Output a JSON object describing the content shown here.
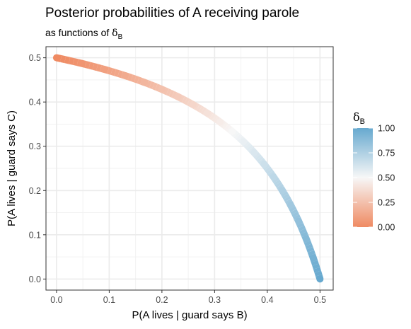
{
  "chart_data": {
    "type": "line",
    "title": "Posterior probabilities of A receiving parole",
    "subtitle_prefix": "as functions of ",
    "subtitle_symbol": "δ",
    "subtitle_subscript": "B",
    "xlabel": "P(A lives | guard says B)",
    "ylabel": "P(A lives | guard says C)",
    "xlim": [
      -0.02,
      0.525
    ],
    "ylim": [
      -0.025,
      0.525
    ],
    "x_ticks": [
      0,
      0.1,
      0.2,
      0.3,
      0.4,
      0.5
    ],
    "x_tick_labels": [
      "0.0",
      "0.1",
      "0.2",
      "0.3",
      "0.4",
      "0.5"
    ],
    "y_ticks": [
      0,
      0.1,
      0.2,
      0.3,
      0.4,
      0.5
    ],
    "y_tick_labels": [
      "0.0",
      "0.1",
      "0.2",
      "0.3",
      "0.4",
      "0.5"
    ],
    "grid": true,
    "legend": {
      "placement": "right",
      "title_symbol": "δ",
      "title_subscript": "B",
      "breaks": [
        0,
        0.25,
        0.5,
        0.75,
        1.0
      ],
      "labels": [
        "0.00",
        "0.25",
        "0.50",
        "0.75",
        "1.00"
      ],
      "color_low": "#ef8a62",
      "color_mid": "#f7f7f7",
      "color_high": "#67a9cf"
    },
    "series": [
      {
        "curve": "x = δB / (1 + δB), y = (1 − δB) / (2 − δB)",
        "delta_B": [
          0,
          0.05,
          0.1,
          0.15,
          0.2,
          0.25,
          0.3,
          0.35,
          0.4,
          0.45,
          0.5,
          0.55,
          0.6,
          0.65,
          0.7,
          0.75,
          0.8,
          0.85,
          0.9,
          0.95,
          1.0
        ],
        "x": [
          0,
          0.0476,
          0.0909,
          0.1304,
          0.1667,
          0.2,
          0.2308,
          0.2593,
          0.2857,
          0.3103,
          0.3333,
          0.3548,
          0.375,
          0.3939,
          0.4118,
          0.4286,
          0.4444,
          0.4595,
          0.4737,
          0.4872,
          0.5
        ],
        "y": [
          0.5,
          0.4872,
          0.4737,
          0.4595,
          0.4444,
          0.4286,
          0.4118,
          0.3939,
          0.375,
          0.3548,
          0.3333,
          0.3103,
          0.2857,
          0.2593,
          0.2308,
          0.2,
          0.1667,
          0.1304,
          0.0909,
          0.0476,
          0
        ]
      }
    ]
  }
}
